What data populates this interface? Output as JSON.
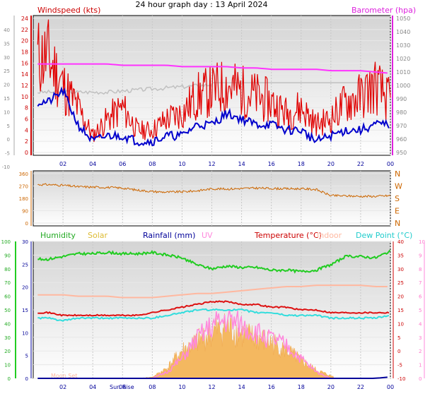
{
  "title": "24 hour graph day : 13 April 2024",
  "colors": {
    "wind": "#e00000",
    "gust_line": "#0000cc",
    "baro": "#ff33ff",
    "temp": "#dd1111",
    "indoor": "#ffb8a0",
    "dew": "#33dddd",
    "humidity": "#22cc22",
    "solar": "#f4b860",
    "uv": "#ff88dd",
    "rain": "#000099",
    "gray": "#c0c0c0",
    "dir": "#cc6600"
  },
  "panel1": {
    "left_label": "Windspeed (kts)",
    "right_label": "Barometer (hpa)",
    "far_left_ticks": [
      "40",
      "35",
      "30",
      "25",
      "20",
      "15",
      "10",
      "5",
      "0",
      "-5",
      "-10"
    ],
    "left_ticks": [
      "24",
      "22",
      "20",
      "18",
      "16",
      "14",
      "12",
      "10",
      "8",
      "6",
      "4",
      "2",
      "0"
    ],
    "right_ticks": [
      "1050",
      "1040",
      "1030",
      "1020",
      "1010",
      "1000",
      "990",
      "980",
      "970",
      "960",
      "950"
    ],
    "x_ticks": [
      "02",
      "04",
      "06",
      "08",
      "10",
      "12",
      "14",
      "16",
      "18",
      "20",
      "22",
      "00"
    ]
  },
  "panel2": {
    "left_ticks": [
      "360",
      "270",
      "180",
      "90",
      "0"
    ],
    "right_ticks": [
      "N",
      "W",
      "S",
      "E",
      "N"
    ]
  },
  "panel3": {
    "labels": {
      "humidity": "Humidity",
      "solar": "Solar",
      "rainfall": "Rainfall (mm)",
      "uv": "UV",
      "temperature": "Temperature (°C)",
      "indoor": "Indoor",
      "dewpoint": "Dew Point (°C)"
    },
    "humidity_ticks": [
      "100",
      "90",
      "80",
      "70",
      "60",
      "50",
      "40",
      "30",
      "20",
      "10",
      "0"
    ],
    "rain_ticks": [
      "30",
      "25",
      "20",
      "15",
      "10",
      "5",
      "0"
    ],
    "temp_ticks": [
      "40",
      "35",
      "30",
      "25",
      "20",
      "15",
      "10",
      "5",
      "0",
      "-5",
      "-10"
    ],
    "uv_ticks": [
      "10",
      "9",
      "8",
      "7",
      "6",
      "5",
      "4",
      "3",
      "2",
      "1",
      "0"
    ],
    "x_ticks": [
      "02",
      "04",
      "06",
      "08",
      "10",
      "12",
      "14",
      "16",
      "18",
      "20",
      "22",
      "00"
    ],
    "sun_rise": "Sun Rise",
    "moon_set": "Moon Set"
  },
  "chart_data": [
    {
      "type": "line",
      "title": "24 hour graph day : 13 April 2024",
      "xlabel": "",
      "ylabel": "Windspeed (kts)",
      "y2label": "Barometer (hpa)",
      "x": [
        1,
        2,
        3,
        4,
        5,
        6,
        7,
        8,
        9,
        10,
        11,
        12,
        13,
        14,
        15,
        16,
        17,
        18,
        19,
        20,
        21,
        22,
        23,
        24
      ],
      "ylim": [
        0,
        24
      ],
      "y2lim": [
        950,
        1050
      ],
      "series": [
        {
          "name": "Windspeed (kts)",
          "axis": "left",
          "values": [
            17,
            12,
            8,
            3,
            6,
            8,
            4,
            4,
            6,
            7,
            10,
            11,
            12,
            11,
            10,
            9,
            7,
            8,
            5,
            6,
            9,
            10,
            12,
            9
          ]
        },
        {
          "name": "",
          "axis": "left",
          "values": [
            9,
            11,
            5,
            2,
            3,
            3,
            2,
            2,
            3,
            3,
            5,
            5,
            7,
            6,
            5,
            5,
            4,
            4,
            2,
            3,
            4,
            4,
            5,
            5
          ]
        },
        {
          "name": "Barometer (hpa)",
          "axis": "right",
          "values": [
            1016,
            1016,
            1016,
            1016,
            1016,
            1015,
            1015,
            1015,
            1015,
            1014,
            1014,
            1014,
            1014,
            1013,
            1013,
            1012,
            1012,
            1012,
            1012,
            1011,
            1011,
            1011,
            1010,
            1009
          ]
        }
      ]
    },
    {
      "type": "line",
      "xlabel": "",
      "ylabel": "",
      "x": [
        1,
        2,
        3,
        4,
        5,
        6,
        7,
        8,
        9,
        10,
        11,
        12,
        13,
        14,
        15,
        16,
        17,
        18,
        19,
        20,
        21,
        22,
        23,
        24
      ],
      "ylim": [
        0,
        360
      ],
      "series": [
        {
          "name": "",
          "values": [
            280,
            275,
            265,
            262,
            260,
            255,
            240,
            230,
            225,
            228,
            235,
            250,
            248,
            252,
            255,
            252,
            250,
            250,
            245,
            200,
            198,
            195,
            195,
            200
          ]
        }
      ]
    },
    {
      "type": "line",
      "xlabel": "",
      "ylabel": "",
      "x": [
        1,
        2,
        3,
        4,
        5,
        6,
        7,
        8,
        9,
        10,
        11,
        12,
        13,
        14,
        15,
        16,
        17,
        18,
        19,
        20,
        21,
        22,
        23,
        24
      ],
      "series": [
        {
          "name": "Humidity",
          "axis": "humidity",
          "ylim": [
            0,
            100
          ],
          "values": [
            87,
            89,
            91,
            91,
            92,
            91,
            91,
            92,
            90,
            88,
            83,
            80,
            82,
            81,
            81,
            79,
            79,
            78,
            79,
            83,
            89,
            89,
            88,
            93
          ]
        },
        {
          "name": "Temperature (°C)",
          "axis": "temp",
          "ylim": [
            -10,
            40
          ],
          "values": [
            14,
            13,
            13,
            13,
            13,
            13,
            13,
            14,
            15,
            16,
            17,
            18,
            18,
            17,
            17,
            16,
            16,
            15,
            15,
            14,
            14,
            14,
            14,
            14
          ]
        },
        {
          "name": "Indoor",
          "axis": "temp",
          "ylim": [
            -10,
            40
          ],
          "values": [
            20.5,
            20.5,
            20,
            20,
            20,
            19.5,
            19.5,
            19.5,
            20,
            20.5,
            21,
            21,
            21.5,
            22,
            22.5,
            23,
            23.5,
            23.5,
            24,
            24,
            24,
            24,
            23.5,
            23.5
          ]
        },
        {
          "name": "Dew Point (°C)",
          "axis": "temp",
          "ylim": [
            -10,
            40
          ],
          "values": [
            12,
            11,
            12,
            12,
            12,
            12,
            12,
            12,
            13,
            14,
            15,
            15,
            15,
            15,
            14,
            14,
            13,
            13,
            13,
            12,
            12,
            12,
            12,
            13
          ]
        },
        {
          "name": "Solar",
          "axis": "solar",
          "values": [
            0,
            0,
            0,
            0,
            0,
            0,
            0,
            20,
            160,
            430,
            560,
            710,
            800,
            680,
            620,
            560,
            440,
            280,
            130,
            40,
            0,
            0,
            0,
            0
          ]
        },
        {
          "name": "UV",
          "axis": "uv",
          "ylim": [
            0,
            10
          ],
          "values": [
            0,
            0,
            0,
            0,
            0,
            0,
            0,
            0,
            0.5,
            1.5,
            3,
            4,
            4.5,
            4,
            3.5,
            3,
            2.5,
            1.5,
            0.5,
            0,
            0,
            0,
            0,
            0
          ]
        },
        {
          "name": "Rainfall (mm)",
          "axis": "rain",
          "ylim": [
            0,
            30
          ],
          "values": [
            0,
            0,
            0,
            0,
            0,
            0,
            0,
            0,
            0,
            0,
            0,
            0,
            0,
            0,
            0,
            0,
            0,
            0,
            0,
            0,
            0,
            0,
            0,
            0.3
          ]
        }
      ]
    }
  ]
}
